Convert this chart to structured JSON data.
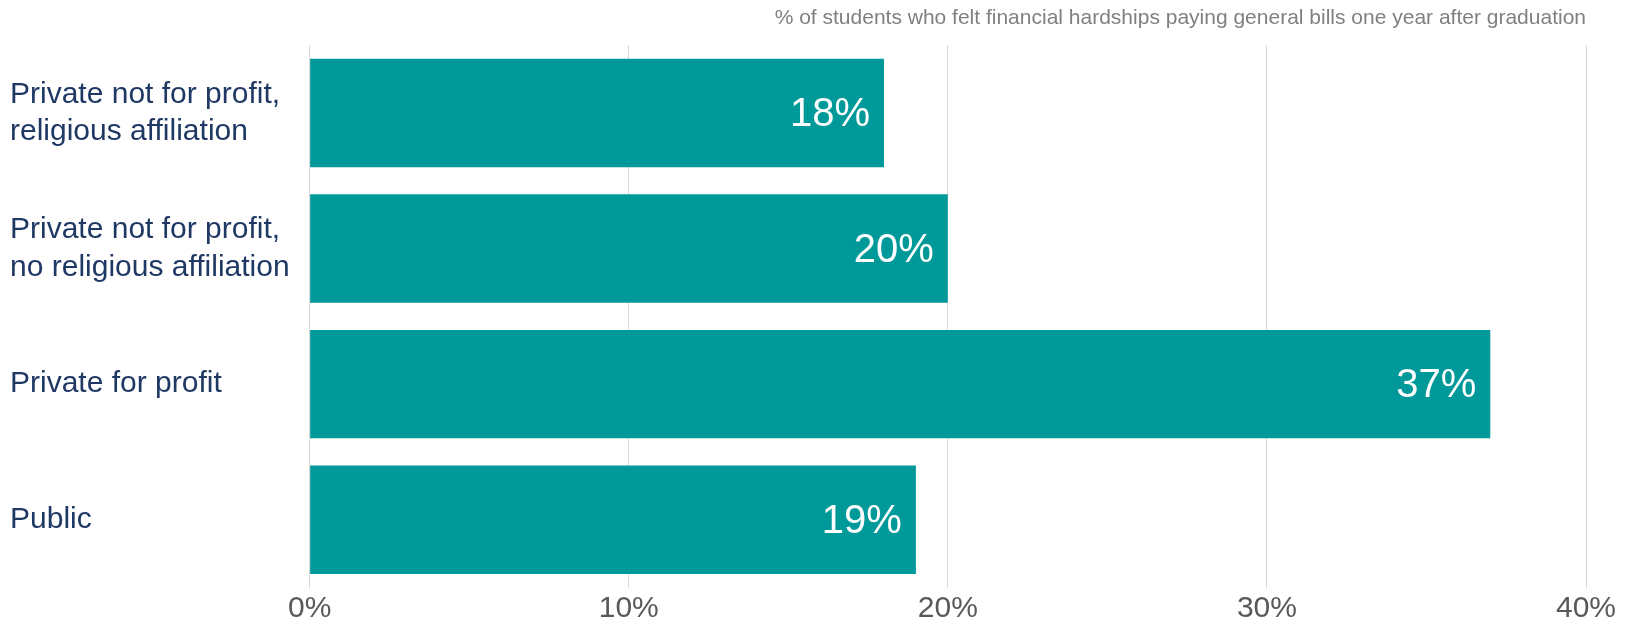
{
  "chart_data": {
    "type": "bar",
    "orientation": "horizontal",
    "title": "% of students who felt financial hardships paying general bills one year after graduation",
    "categories": [
      "Private not for profit, religious affiliation",
      "Private not for profit, no religious affiliation",
      "Private for profit",
      "Public"
    ],
    "values": [
      18,
      20,
      37,
      19
    ],
    "value_labels": [
      "18%",
      "20%",
      "37%",
      "19%"
    ],
    "color": "#009999",
    "xlim": [
      0,
      40
    ],
    "xticks": [
      {
        "value": 0,
        "label": "0%"
      },
      {
        "value": 10,
        "label": "10%"
      },
      {
        "value": 20,
        "label": "20%"
      },
      {
        "value": 30,
        "label": "30%"
      },
      {
        "value": 40,
        "label": "40%"
      }
    ],
    "grid": "x",
    "legend": false
  }
}
